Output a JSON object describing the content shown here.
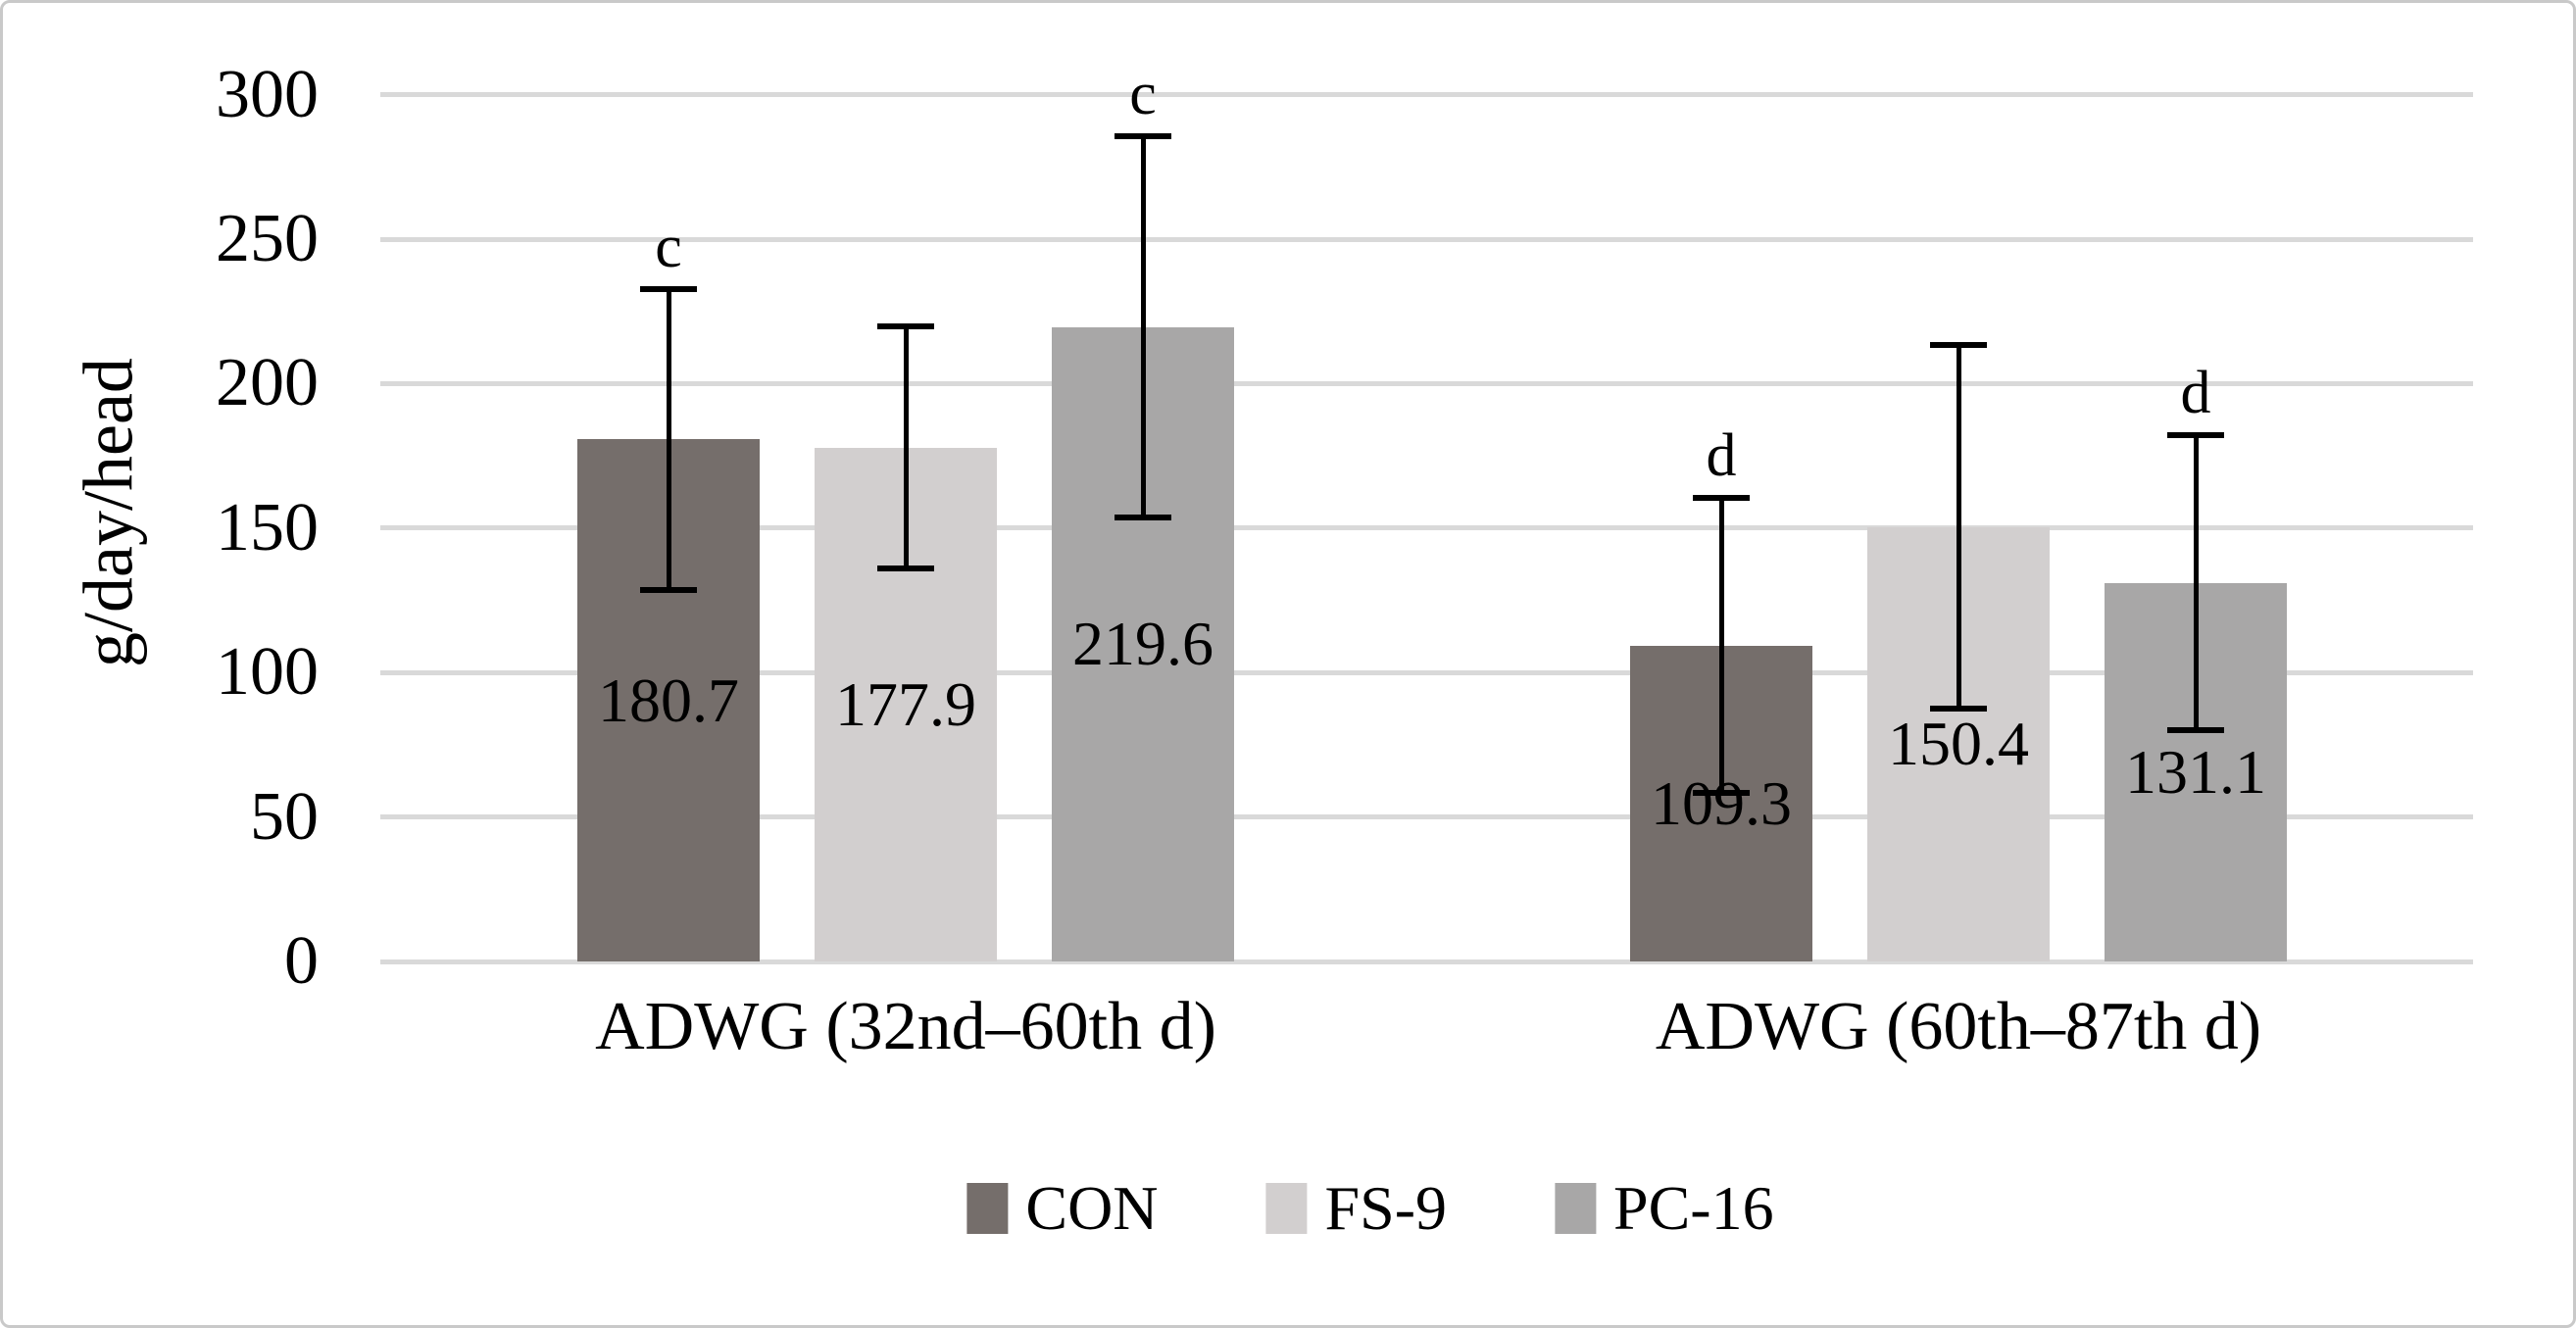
{
  "chart_data": {
    "type": "bar",
    "title": "",
    "ylabel": "g/day/head",
    "ylim": [
      0,
      300
    ],
    "yticks": [
      300,
      250,
      200,
      150,
      100,
      50,
      0
    ],
    "grid": "horizontal",
    "legend_position": "bottom",
    "categories": [
      "ADWG (32nd–60th d)",
      "ADWG (60th–87th d)"
    ],
    "series": [
      {
        "name": "CON",
        "color": "#756e6b",
        "values": [
          180.7,
          109.3
        ],
        "value_labels": [
          "180.7",
          "109.3"
        ],
        "errors": [
          52,
          51
        ],
        "letters": [
          "c",
          "d"
        ]
      },
      {
        "name": "FS-9",
        "color": "#d2cfcf",
        "values": [
          177.9,
          150.4
        ],
        "value_labels": [
          "177.9",
          "150.4"
        ],
        "errors": [
          42,
          63
        ],
        "letters": [
          null,
          null
        ]
      },
      {
        "name": "PC-16",
        "color": "#a8a7a7",
        "values": [
          219.6,
          131.1
        ],
        "value_labels": [
          "219.6",
          "131.1"
        ],
        "errors": [
          66,
          51
        ],
        "letters": [
          "c",
          "d"
        ]
      }
    ],
    "colors": {
      "gridline": "#d9d9d9",
      "error_bar": "#000000",
      "text": "#000000",
      "border": "#c9c9c9",
      "background": "#ffffff"
    }
  }
}
